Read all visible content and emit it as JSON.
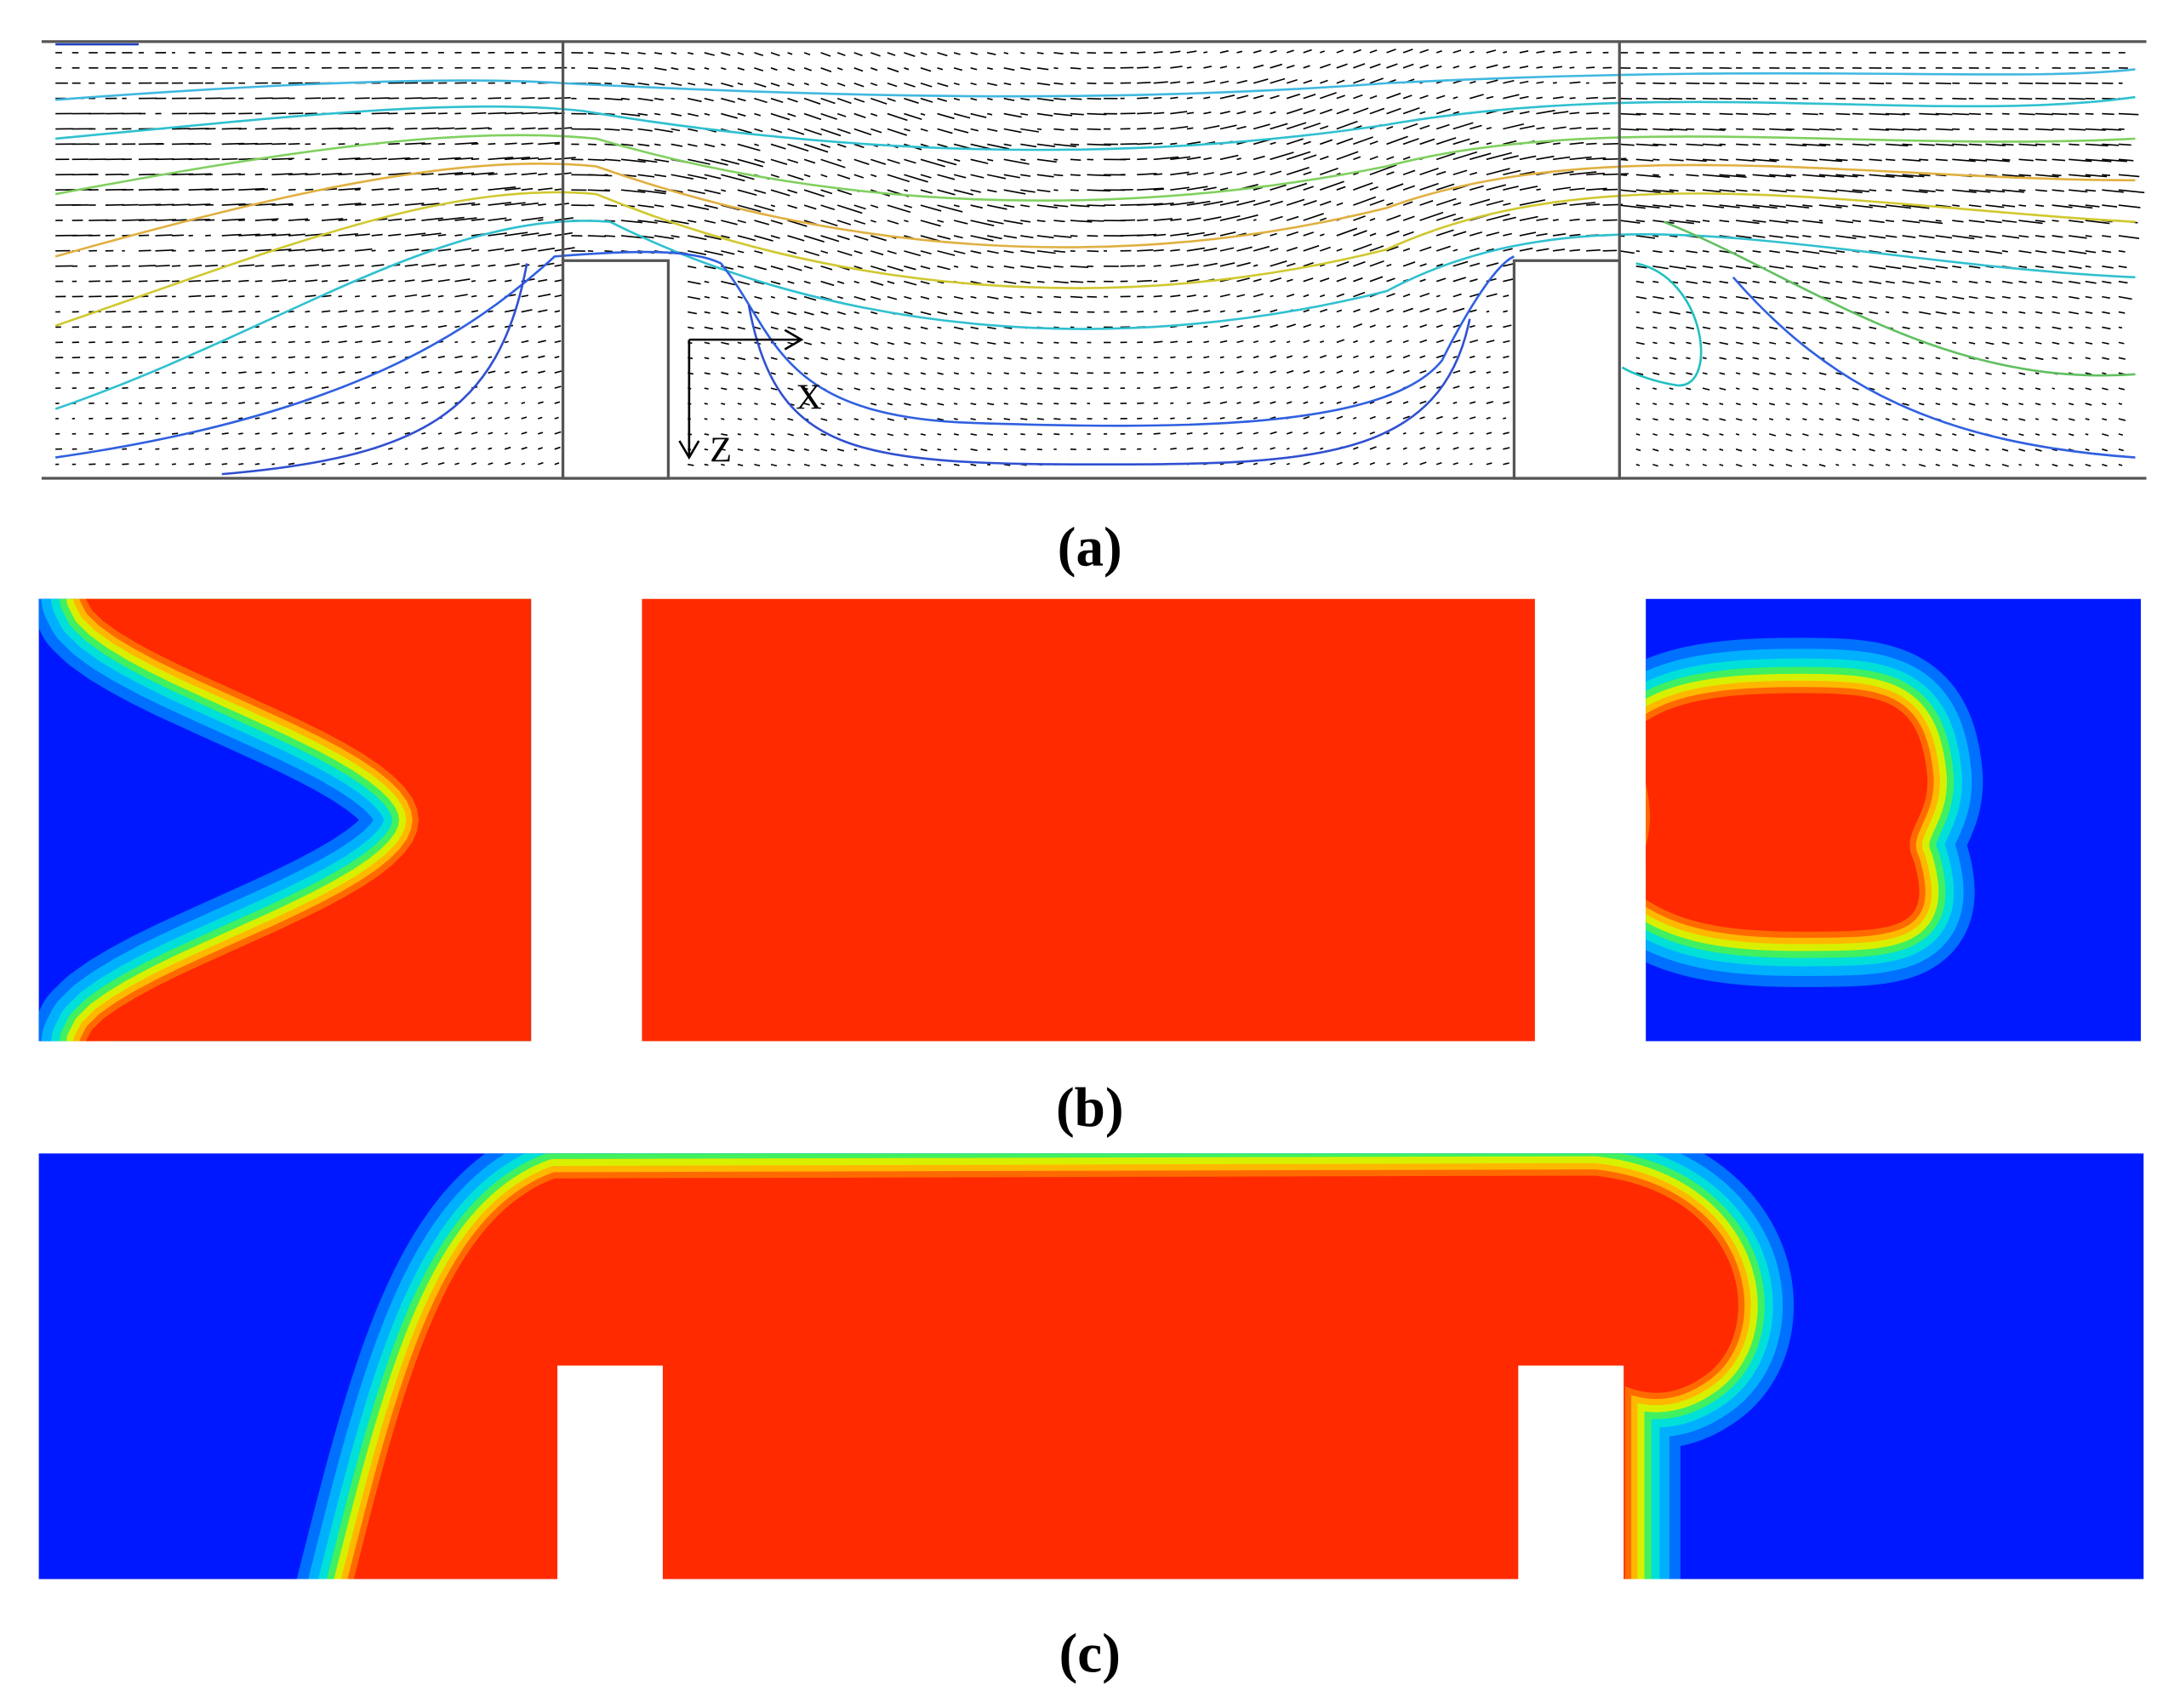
{
  "panel_a": {
    "axis_x": "X",
    "axis_z": "Z",
    "caption": "(a)"
  },
  "panel_b": {
    "caption": "(b)"
  },
  "panel_c": {
    "caption": "(c)"
  }
}
